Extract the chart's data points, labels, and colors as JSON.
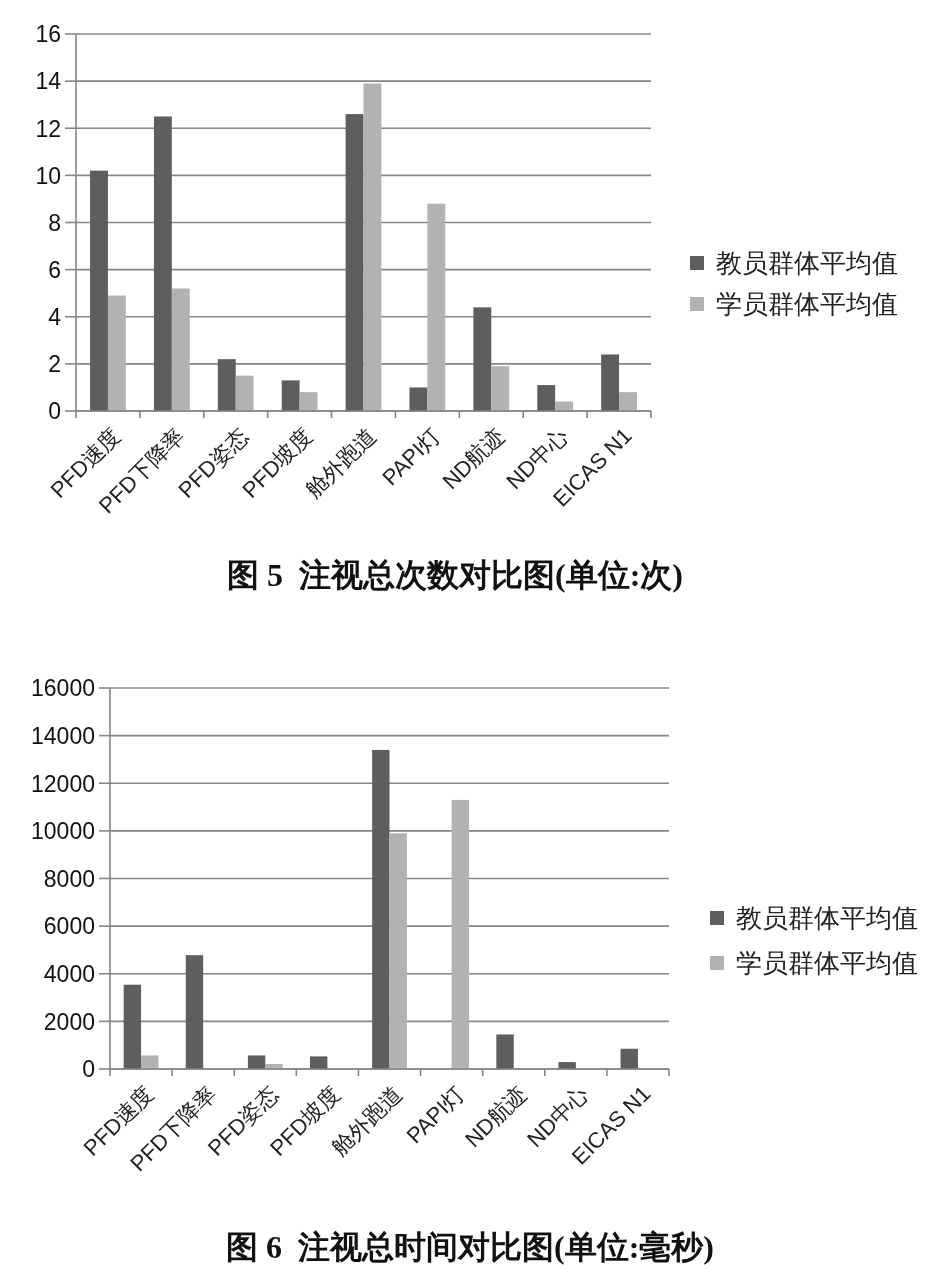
{
  "chart_data": [
    {
      "type": "bar",
      "title": "图 5  注视总次数对比图(单位:次)",
      "categories": [
        "PFD速度",
        "PFD下降率",
        "PFD姿态",
        "PFD坡度",
        "舱外跑道",
        "PAPI灯",
        "ND航迹",
        "ND中心",
        "EICAS N1"
      ],
      "series": [
        {
          "name": "教员群体平均值",
          "color": "#5e5e5e",
          "values": [
            10.2,
            12.5,
            2.2,
            1.3,
            12.6,
            1.0,
            4.4,
            1.1,
            2.4
          ]
        },
        {
          "name": "学员群体平均值",
          "color": "#b2b2b2",
          "values": [
            4.9,
            5.2,
            1.5,
            0.8,
            13.9,
            8.8,
            1.9,
            0.4,
            0.8
          ]
        }
      ],
      "ylim": [
        0,
        16
      ],
      "yticks": [
        0,
        2,
        4,
        6,
        8,
        10,
        12,
        14,
        16
      ],
      "grid": "y",
      "legend": "right"
    },
    {
      "type": "bar",
      "title": "图 6  注视总时间对比图(单位:毫秒)",
      "categories": [
        "PFD速度",
        "PFD下降率",
        "PFD姿态",
        "PFD坡度",
        "舱外跑道",
        "PAPI灯",
        "ND航迹",
        "ND中心",
        "EICAS N1"
      ],
      "series": [
        {
          "name": "教员群体平均值",
          "color": "#5e5e5e",
          "values": [
            3540,
            4780,
            570,
            530,
            13400,
            null,
            1450,
            290,
            850
          ]
        },
        {
          "name": "学员群体平均值",
          "color": "#b2b2b2",
          "values": [
            570,
            null,
            210,
            null,
            9900,
            11300,
            null,
            null,
            null
          ]
        }
      ],
      "ylim": [
        0,
        16000
      ],
      "yticks": [
        0,
        2000,
        4000,
        6000,
        8000,
        10000,
        12000,
        14000,
        16000
      ],
      "grid": "y",
      "legend": "right"
    }
  ]
}
